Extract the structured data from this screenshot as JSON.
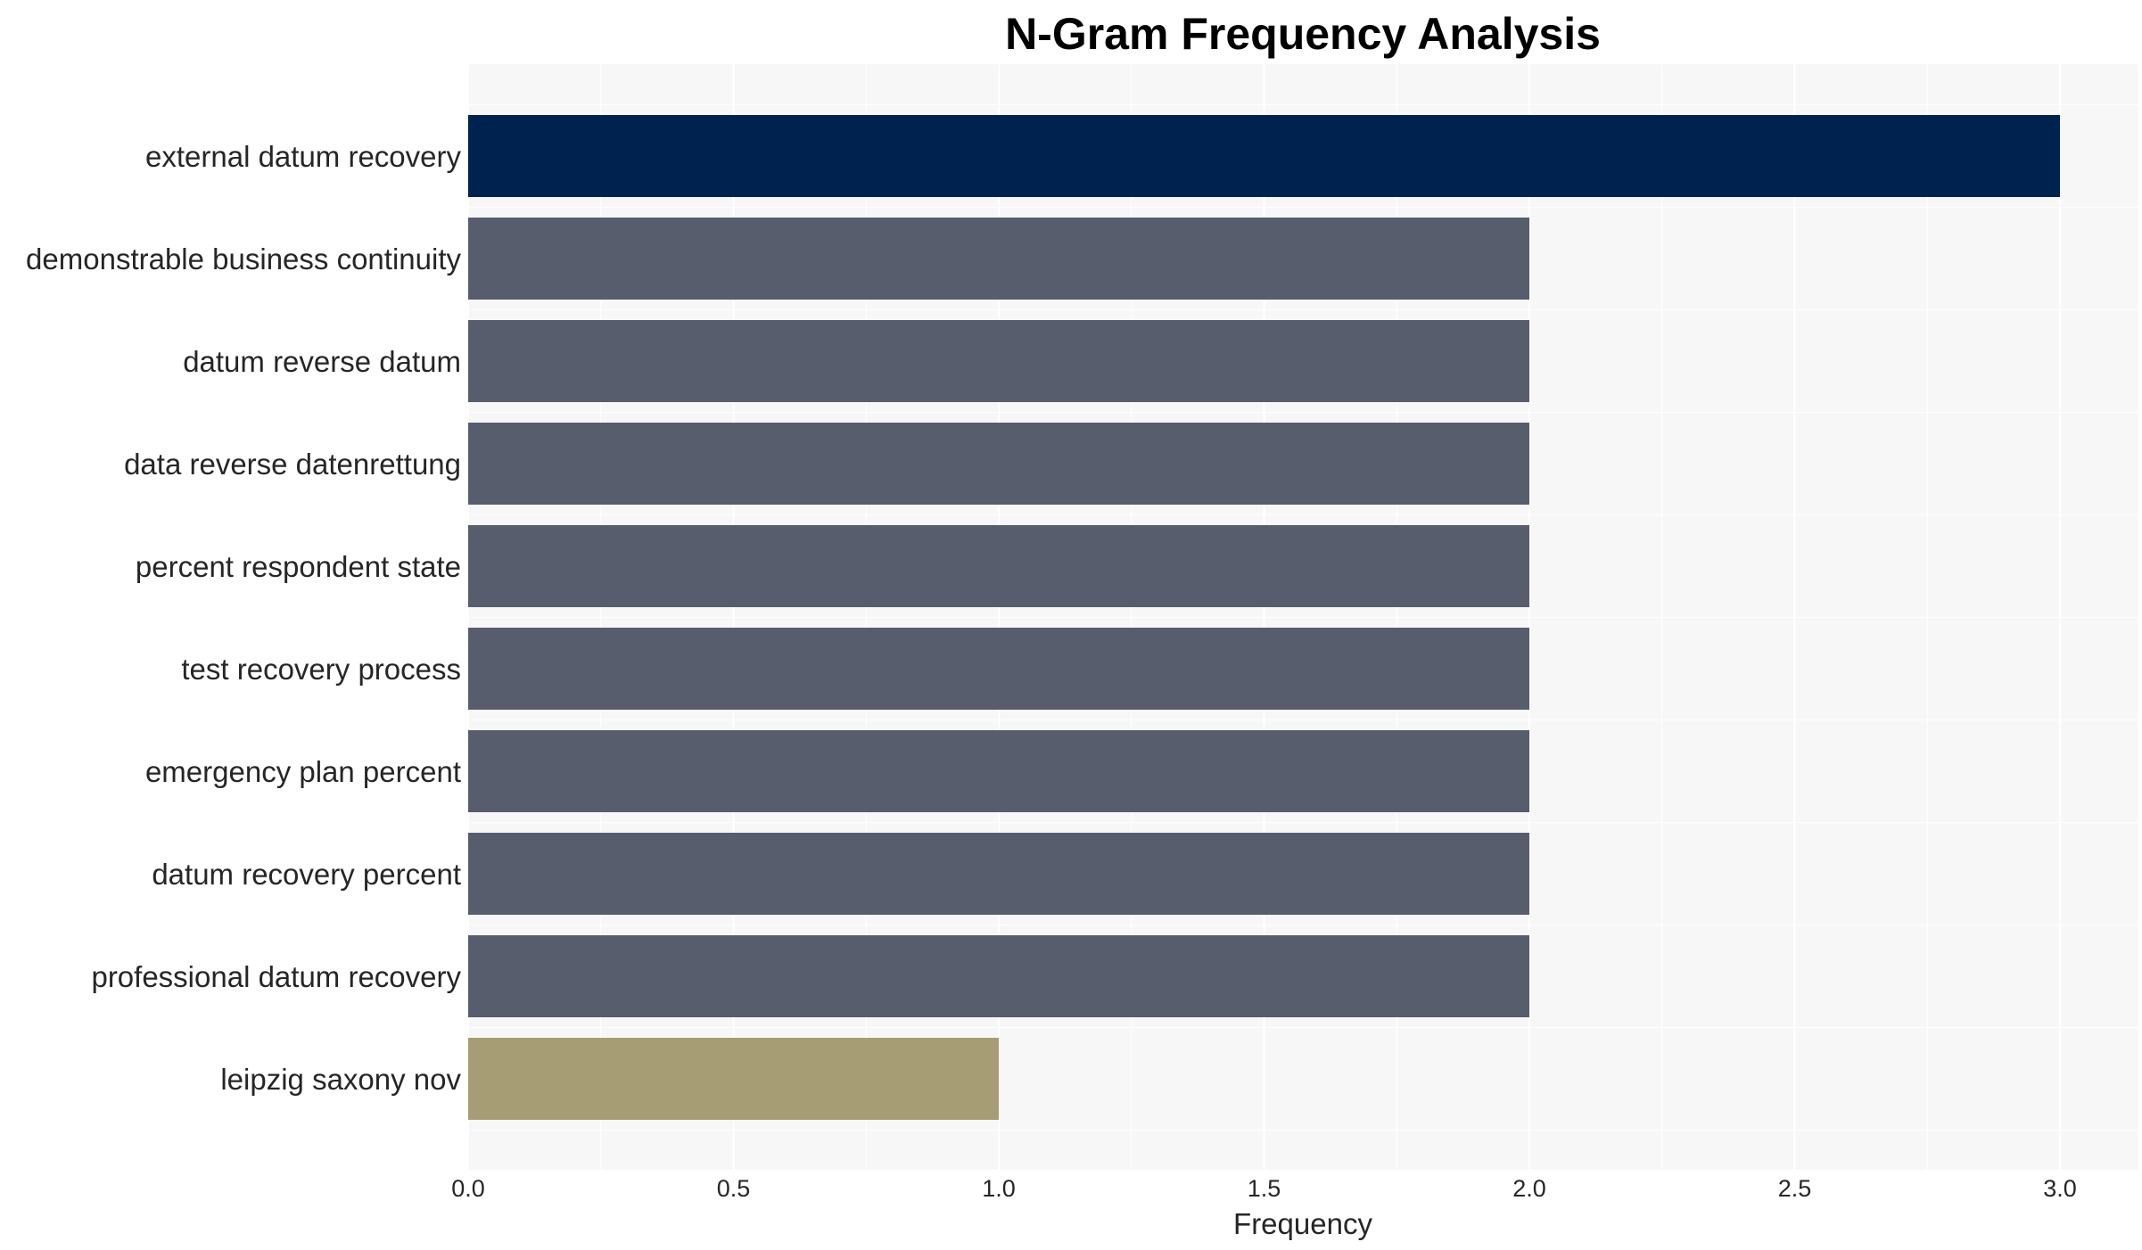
{
  "chart_data": {
    "type": "bar",
    "orientation": "horizontal",
    "title": "N-Gram Frequency Analysis",
    "xlabel": "Frequency",
    "ylabel": "",
    "xlim": [
      0,
      3.15
    ],
    "xticks": [
      0.0,
      0.5,
      1.0,
      1.5,
      2.0,
      2.5,
      3.0
    ],
    "xtick_labels": [
      "0.0",
      "0.5",
      "1.0",
      "1.5",
      "2.0",
      "2.5",
      "3.0"
    ],
    "grid": true,
    "legend": "none",
    "categories": [
      "external datum recovery",
      "demonstrable business continuity",
      "datum reverse datum",
      "data reverse datenrettung",
      "percent respondent state",
      "test recovery process",
      "emergency plan percent",
      "datum recovery percent",
      "professional datum recovery",
      "leipzig saxony nov"
    ],
    "values": [
      3,
      2,
      2,
      2,
      2,
      2,
      2,
      2,
      2,
      1
    ],
    "bar_colors": [
      "#00224e",
      "#575d6d",
      "#575d6d",
      "#575d6d",
      "#575d6d",
      "#575d6d",
      "#575d6d",
      "#575d6d",
      "#575d6d",
      "#a69d75"
    ],
    "background_color": "#f7f7f7",
    "grid_color": "#ffffff"
  }
}
